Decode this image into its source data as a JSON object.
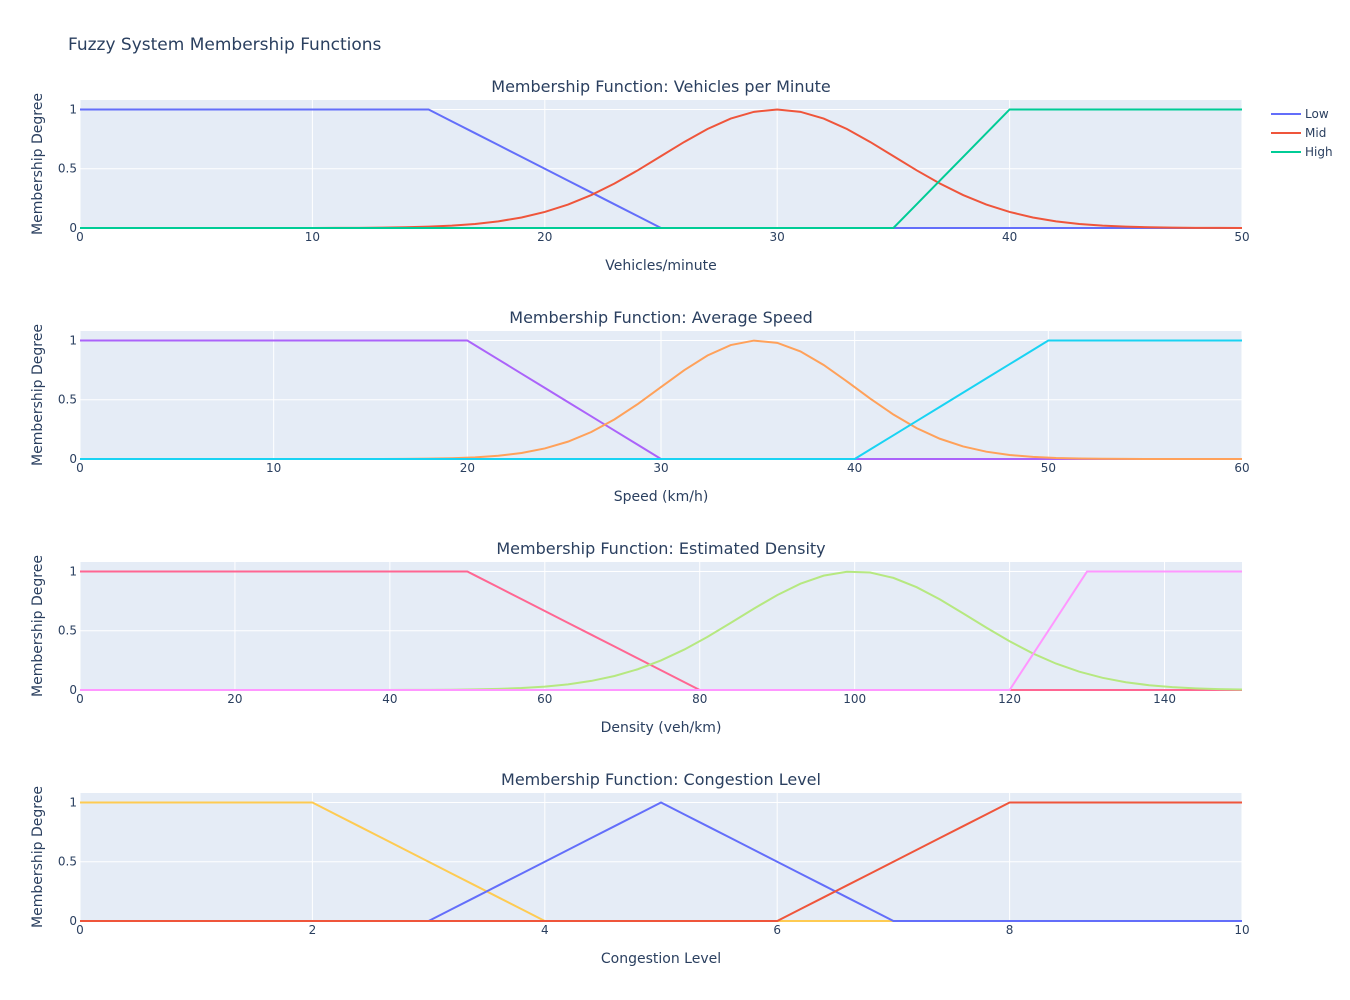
{
  "title": "Fuzzy System Membership Functions",
  "legend": {
    "placement": "top-right",
    "entries": [
      {
        "name": "Low",
        "color": "#636efa"
      },
      {
        "name": "Mid",
        "color": "#EF553B"
      },
      {
        "name": "High",
        "color": "#00cc96"
      }
    ]
  },
  "chart_data": [
    {
      "type": "line",
      "title": "Membership Function: Vehicles per Minute",
      "xlabel": "Vehicles/minute",
      "ylabel": "Membership Degree",
      "xlim": [
        0,
        50
      ],
      "ylim": [
        0,
        1.08
      ],
      "xticks": [
        "0",
        "10",
        "20",
        "30",
        "40",
        "50"
      ],
      "xtick_values": [
        0,
        10,
        20,
        30,
        40,
        50
      ],
      "yticks": [
        "0",
        "0.5",
        "1"
      ],
      "ytick_values": [
        0,
        0.5,
        1
      ],
      "grid": true,
      "series": [
        {
          "name": "Low",
          "color": "#636efa",
          "shape": "trapezoid",
          "params": [
            0,
            0,
            15,
            25
          ]
        },
        {
          "name": "Mid",
          "color": "#EF553B",
          "shape": "gaussian",
          "params": [
            30,
            5
          ]
        },
        {
          "name": "High",
          "color": "#00cc96",
          "shape": "trapezoid",
          "params": [
            35,
            40,
            50,
            50
          ]
        }
      ]
    },
    {
      "type": "line",
      "title": "Membership Function: Average Speed",
      "xlabel": "Speed (km/h)",
      "ylabel": "Membership Degree",
      "xlim": [
        0,
        60
      ],
      "ylim": [
        0,
        1.08
      ],
      "xticks": [
        "0",
        "10",
        "20",
        "30",
        "40",
        "50",
        "60"
      ],
      "xtick_values": [
        0,
        10,
        20,
        30,
        40,
        50,
        60
      ],
      "yticks": [
        "0",
        "0.5",
        "1"
      ],
      "ytick_values": [
        0,
        0.5,
        1
      ],
      "grid": true,
      "series": [
        {
          "color": "#ab63fa",
          "shape": "trapezoid",
          "params": [
            0,
            0,
            20,
            30
          ]
        },
        {
          "color": "#FFA15A",
          "shape": "gaussian",
          "params": [
            35,
            5
          ]
        },
        {
          "color": "#19d3f3",
          "shape": "trapezoid",
          "params": [
            40,
            50,
            60,
            60
          ]
        }
      ]
    },
    {
      "type": "line",
      "title": "Membership Function: Estimated Density",
      "xlabel": "Density (veh/km)",
      "ylabel": "Membership Degree",
      "xlim": [
        0,
        150
      ],
      "ylim": [
        0,
        1.08
      ],
      "xticks": [
        "0",
        "20",
        "40",
        "60",
        "80",
        "100",
        "120",
        "140"
      ],
      "xtick_values": [
        0,
        20,
        40,
        60,
        80,
        100,
        120,
        140
      ],
      "yticks": [
        "0",
        "0.5",
        "1"
      ],
      "ytick_values": [
        0,
        0.5,
        1
      ],
      "grid": true,
      "series": [
        {
          "color": "#FF6692",
          "shape": "trapezoid",
          "params": [
            0,
            0,
            50,
            80
          ]
        },
        {
          "color": "#B6E880",
          "shape": "gaussian",
          "params": [
            100,
            15
          ]
        },
        {
          "color": "#FF97FF",
          "shape": "trapezoid",
          "params": [
            120,
            130,
            150,
            150
          ]
        }
      ]
    },
    {
      "type": "line",
      "title": "Membership Function: Congestion Level",
      "xlabel": "Congestion Level",
      "ylabel": "Membership Degree",
      "xlim": [
        0,
        10
      ],
      "ylim": [
        0,
        1.08
      ],
      "xticks": [
        "0",
        "2",
        "4",
        "6",
        "8",
        "10"
      ],
      "xtick_values": [
        0,
        2,
        4,
        6,
        8,
        10
      ],
      "yticks": [
        "0",
        "0.5",
        "1"
      ],
      "ytick_values": [
        0,
        0.5,
        1
      ],
      "grid": true,
      "series": [
        {
          "color": "#FECB52",
          "shape": "trapezoid",
          "params": [
            0,
            0,
            2,
            4
          ]
        },
        {
          "color": "#636efa",
          "shape": "triangle",
          "params": [
            3,
            5,
            7
          ]
        },
        {
          "color": "#EF553B",
          "shape": "trapezoid",
          "params": [
            6,
            8,
            10,
            10
          ]
        }
      ]
    }
  ]
}
